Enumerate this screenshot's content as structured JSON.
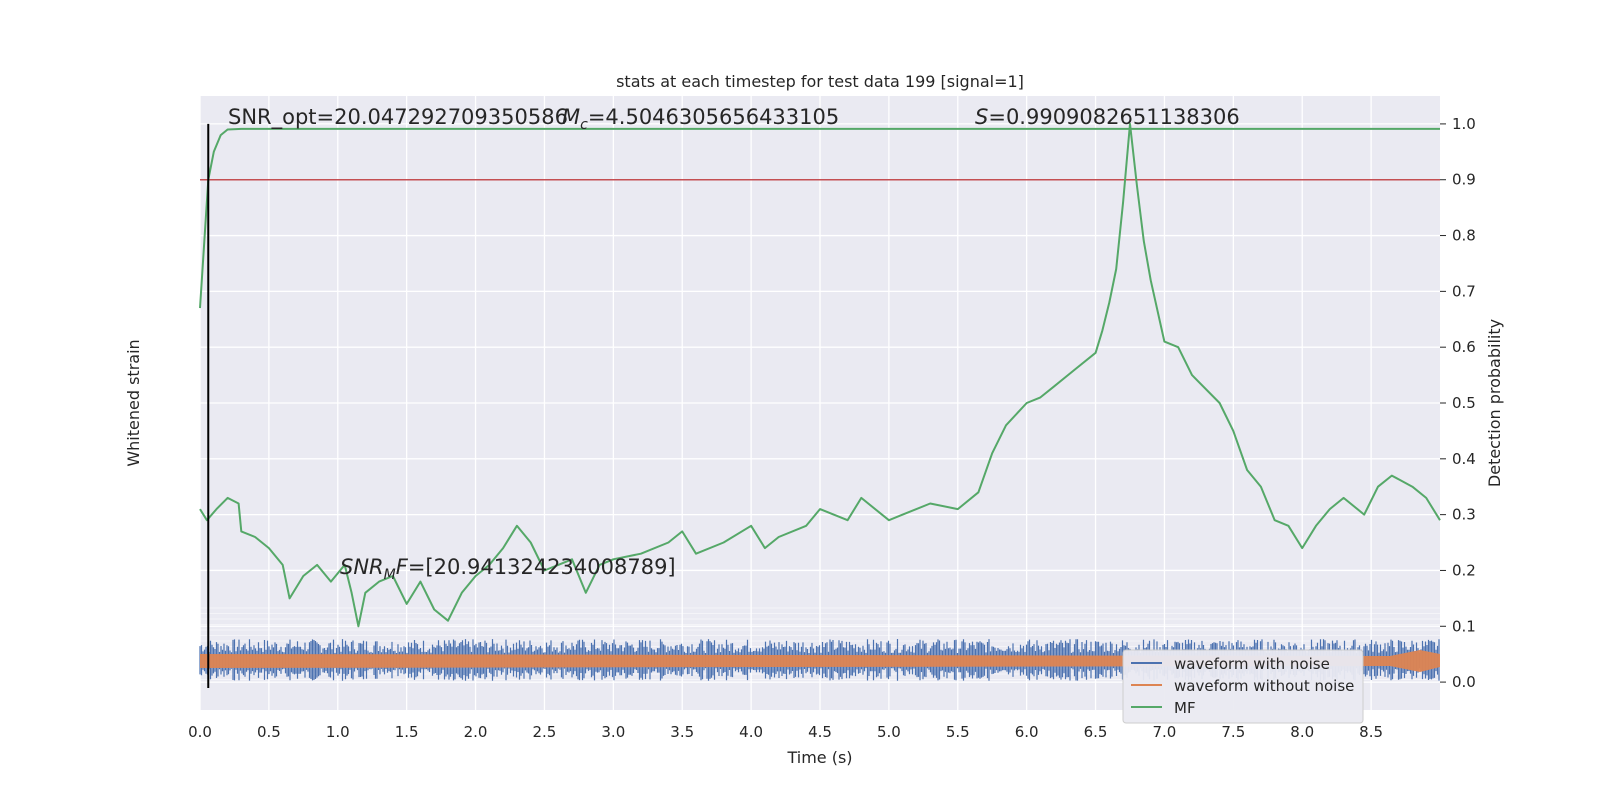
{
  "chart_data": {
    "type": "line",
    "title": "stats at each timestep for test data 199 [signal=1]",
    "xlabel": "Time (s)",
    "ylabel_left": "Whitened strain",
    "ylabel_right": "Detection probability",
    "xlim": [
      0,
      9.0
    ],
    "ylim_right": [
      -0.05,
      1.05
    ],
    "x_ticks": [
      "0.0",
      "0.5",
      "1.0",
      "1.5",
      "2.0",
      "2.5",
      "3.0",
      "3.5",
      "4.0",
      "4.5",
      "5.0",
      "5.5",
      "6.0",
      "6.5",
      "7.0",
      "7.5",
      "8.0",
      "8.5"
    ],
    "y_ticks_right": [
      "0.0",
      "0.1",
      "0.2",
      "0.3",
      "0.4",
      "0.5",
      "0.6",
      "0.7",
      "0.8",
      "0.9",
      "1.0"
    ],
    "grid": true,
    "annotations": {
      "snr_opt": "SNR_opt=20.047292709350586",
      "mc_symbol": "M",
      "mc_sub": "c",
      "mc_value": "=4.5046305656433105",
      "s_symbol": "S",
      "s_value": "=0.9909082651138306",
      "snr_mf_symbol": "SNR",
      "snr_mf_sub": "M",
      "snr_mf_F": "F",
      "snr_mf_value": "=[20.941324234008789]"
    },
    "threshold": 0.9,
    "marker_time": 0.06,
    "legend": {
      "placement": "lower-right",
      "entries": [
        "waveform with noise",
        "waveform without noise",
        "MF"
      ]
    },
    "colors": {
      "noise": "#4c72b0",
      "clean": "#dd8452",
      "mf": "#55a868",
      "threshold": "#c44e52",
      "background": "#eaeaf2"
    },
    "series": [
      {
        "name": "MF",
        "points": [
          [
            0.0,
            0.31
          ],
          [
            0.05,
            0.29
          ],
          [
            0.12,
            0.31
          ],
          [
            0.2,
            0.33
          ],
          [
            0.28,
            0.32
          ],
          [
            0.3,
            0.27
          ],
          [
            0.4,
            0.26
          ],
          [
            0.5,
            0.24
          ],
          [
            0.6,
            0.21
          ],
          [
            0.65,
            0.15
          ],
          [
            0.75,
            0.19
          ],
          [
            0.85,
            0.21
          ],
          [
            0.95,
            0.18
          ],
          [
            1.05,
            0.21
          ],
          [
            1.1,
            0.16
          ],
          [
            1.15,
            0.1
          ],
          [
            1.2,
            0.16
          ],
          [
            1.3,
            0.18
          ],
          [
            1.4,
            0.19
          ],
          [
            1.5,
            0.14
          ],
          [
            1.6,
            0.18
          ],
          [
            1.7,
            0.13
          ],
          [
            1.8,
            0.11
          ],
          [
            1.9,
            0.16
          ],
          [
            2.0,
            0.19
          ],
          [
            2.1,
            0.21
          ],
          [
            2.2,
            0.24
          ],
          [
            2.3,
            0.28
          ],
          [
            2.4,
            0.25
          ],
          [
            2.5,
            0.2
          ],
          [
            2.6,
            0.21
          ],
          [
            2.7,
            0.22
          ],
          [
            2.8,
            0.16
          ],
          [
            2.9,
            0.21
          ],
          [
            3.0,
            0.22
          ],
          [
            3.2,
            0.23
          ],
          [
            3.4,
            0.25
          ],
          [
            3.5,
            0.27
          ],
          [
            3.6,
            0.23
          ],
          [
            3.8,
            0.25
          ],
          [
            4.0,
            0.28
          ],
          [
            4.1,
            0.24
          ],
          [
            4.2,
            0.26
          ],
          [
            4.4,
            0.28
          ],
          [
            4.5,
            0.31
          ],
          [
            4.7,
            0.29
          ],
          [
            4.8,
            0.33
          ],
          [
            5.0,
            0.29
          ],
          [
            5.1,
            0.3
          ],
          [
            5.3,
            0.32
          ],
          [
            5.5,
            0.31
          ],
          [
            5.65,
            0.34
          ],
          [
            5.75,
            0.41
          ],
          [
            5.85,
            0.46
          ],
          [
            6.0,
            0.5
          ],
          [
            6.1,
            0.51
          ],
          [
            6.2,
            0.53
          ],
          [
            6.35,
            0.56
          ],
          [
            6.5,
            0.59
          ],
          [
            6.55,
            0.63
          ],
          [
            6.6,
            0.68
          ],
          [
            6.65,
            0.74
          ],
          [
            6.7,
            0.86
          ],
          [
            6.75,
            1.0
          ],
          [
            6.8,
            0.89
          ],
          [
            6.85,
            0.79
          ],
          [
            6.9,
            0.72
          ],
          [
            7.0,
            0.61
          ],
          [
            7.1,
            0.6
          ],
          [
            7.2,
            0.55
          ],
          [
            7.4,
            0.5
          ],
          [
            7.5,
            0.45
          ],
          [
            7.6,
            0.38
          ],
          [
            7.7,
            0.35
          ],
          [
            7.8,
            0.29
          ],
          [
            7.9,
            0.28
          ],
          [
            8.0,
            0.24
          ],
          [
            8.1,
            0.28
          ],
          [
            8.2,
            0.31
          ],
          [
            8.3,
            0.33
          ],
          [
            8.45,
            0.3
          ],
          [
            8.55,
            0.35
          ],
          [
            8.65,
            0.37
          ],
          [
            8.8,
            0.35
          ],
          [
            8.9,
            0.33
          ],
          [
            9.0,
            0.29
          ]
        ]
      },
      {
        "name": "MF",
        "points": [
          [
            0.0,
            0.67
          ],
          [
            0.06,
            0.9
          ],
          [
            0.1,
            0.95
          ],
          [
            0.15,
            0.98
          ],
          [
            0.2,
            0.99
          ],
          [
            0.3,
            0.991
          ],
          [
            9.0,
            0.991
          ]
        ]
      }
    ]
  }
}
